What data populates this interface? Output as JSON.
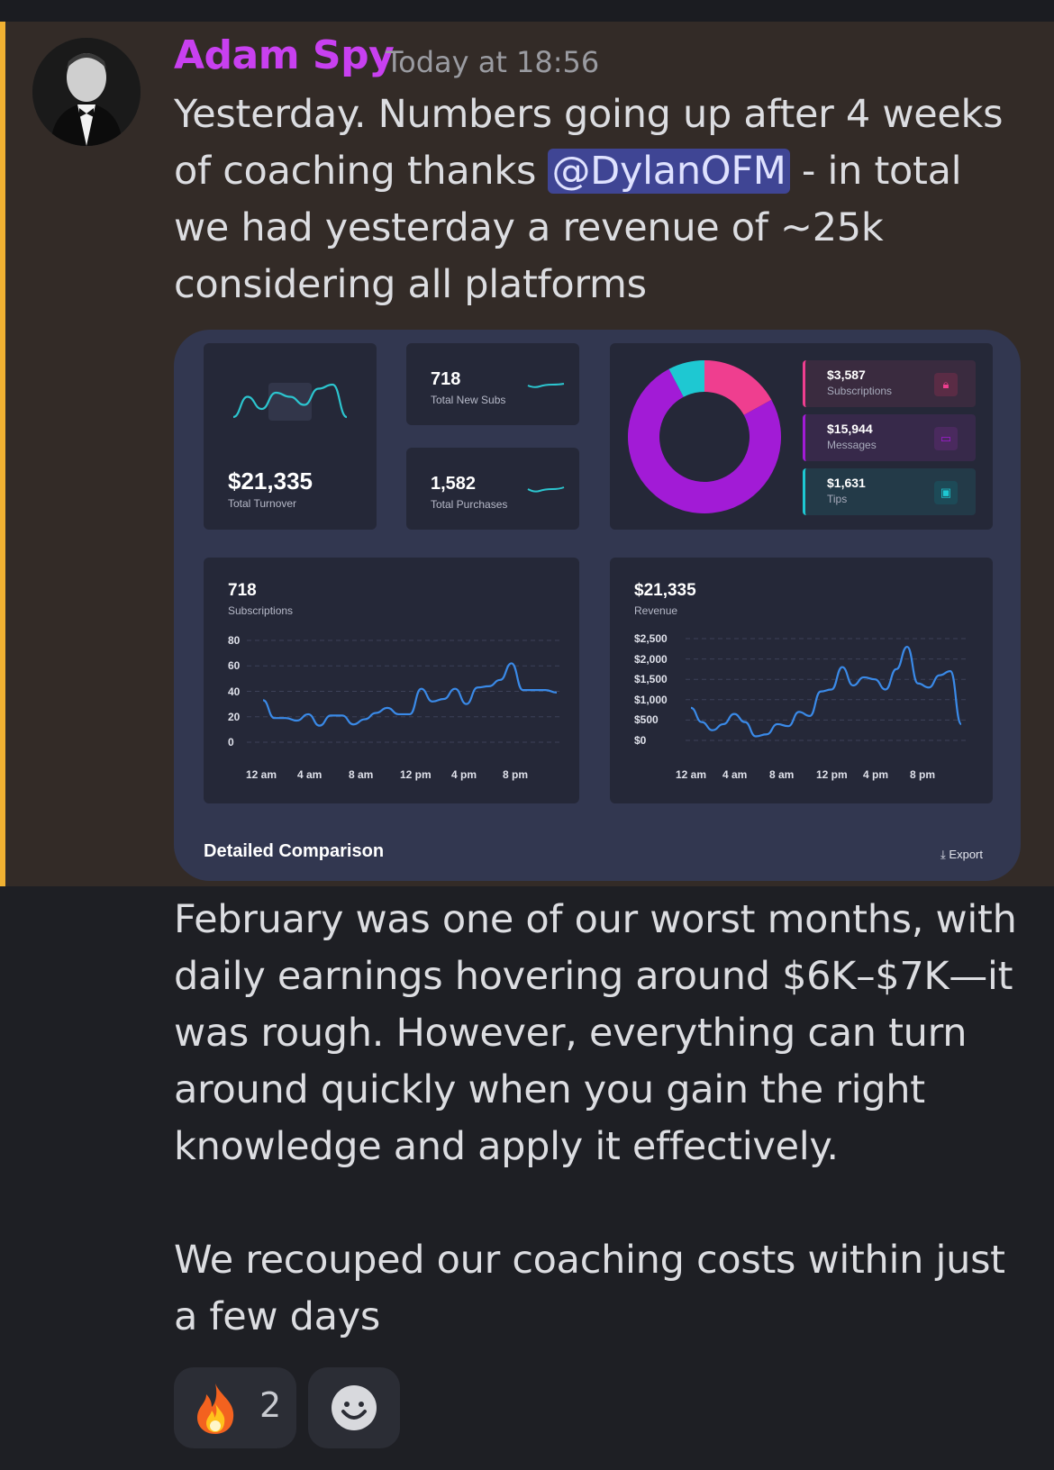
{
  "message": {
    "author": "Adam Spy",
    "timestamp": "Today at 18:56",
    "text_before_mention": "Yesterday. Numbers going up after 4 weeks of coaching thanks ",
    "mention": "@DylanOFM",
    "text_after_mention": " - in total we had yesterday a revenue of ~25k considering all platforms",
    "paragraph2": "February was one of our worst months, with daily earnings hovering around $6K–$7K—it was rough. However, everything can turn around quickly when you gain the right knowledge and apply it effectively.",
    "paragraph3": "We recouped our coaching costs within just a few days"
  },
  "dashboard": {
    "turnover": {
      "value": "$21,335",
      "label": "Total Turnover"
    },
    "new_subs": {
      "value": "718",
      "label": "Total New Subs"
    },
    "purchases": {
      "value": "1,582",
      "label": "Total Purchases"
    },
    "breakdown": [
      {
        "value": "$3,587",
        "label": "Subscriptions",
        "color": "#ef3e8f",
        "icon": "lock-icon"
      },
      {
        "value": "$15,944",
        "label": "Messages",
        "color": "#a21bd6",
        "icon": "message-icon"
      },
      {
        "value": "$1,631",
        "label": "Tips",
        "color": "#1ec8d2",
        "icon": "cash-icon"
      }
    ],
    "subs_chart": {
      "value": "718",
      "label": "Subscriptions"
    },
    "revenue_chart": {
      "value": "$21,335",
      "label": "Revenue"
    },
    "footer_title": "Detailed Comparison",
    "export_label": "Export"
  },
  "chart_data": [
    {
      "type": "pie",
      "categories": [
        "Subscriptions",
        "Messages",
        "Tips"
      ],
      "values": [
        3587,
        15944,
        1631
      ],
      "colors": [
        "#ef3e8f",
        "#a21bd6",
        "#1ec8d2"
      ],
      "donut": true
    },
    {
      "type": "line",
      "title": "Subscriptions",
      "x_ticks": [
        "12 am",
        "4 am",
        "8 am",
        "12 pm",
        "4 pm",
        "8 pm"
      ],
      "y_ticks": [
        "80",
        "60",
        "40",
        "20",
        "0"
      ],
      "ylim": [
        0,
        80
      ],
      "x": [
        0,
        1,
        2,
        3,
        4,
        5,
        6,
        7,
        8,
        9,
        10,
        11,
        12,
        13,
        14,
        15,
        16,
        17,
        18,
        19,
        20,
        21,
        22,
        23,
        24,
        25,
        26
      ],
      "values": [
        33,
        19,
        19,
        17,
        22,
        13,
        21,
        21,
        14,
        18,
        23,
        27,
        22,
        22,
        42,
        32,
        34,
        42,
        30,
        43,
        44,
        49,
        62,
        41,
        41,
        41,
        39
      ],
      "color": "#3a8ae8",
      "grid": true
    },
    {
      "type": "line",
      "title": "Revenue",
      "x_ticks": [
        "12 am",
        "4 am",
        "8 am",
        "12 pm",
        "4 pm",
        "8 pm"
      ],
      "y_ticks": [
        "$2,500",
        "$2,000",
        "$1,500",
        "$1,000",
        "$500",
        "$0"
      ],
      "ylim": [
        0,
        2500
      ],
      "x": [
        0,
        1,
        2,
        3,
        4,
        5,
        6,
        7,
        8,
        9,
        10,
        11,
        12,
        13,
        14,
        15,
        16,
        17,
        18,
        19,
        20,
        21,
        22,
        23,
        24,
        25
      ],
      "values": [
        800,
        450,
        250,
        400,
        650,
        450,
        100,
        150,
        400,
        350,
        700,
        600,
        1200,
        1250,
        1800,
        1350,
        1550,
        1500,
        1250,
        1750,
        2300,
        1400,
        1300,
        1600,
        1700,
        400
      ],
      "color": "#3a8ae8",
      "grid": true
    },
    {
      "type": "line",
      "title": "Total Turnover sparkline",
      "values": [
        4,
        9,
        6,
        10,
        9,
        7,
        11,
        12,
        4
      ],
      "color": "#2cc5cf"
    }
  ]
}
